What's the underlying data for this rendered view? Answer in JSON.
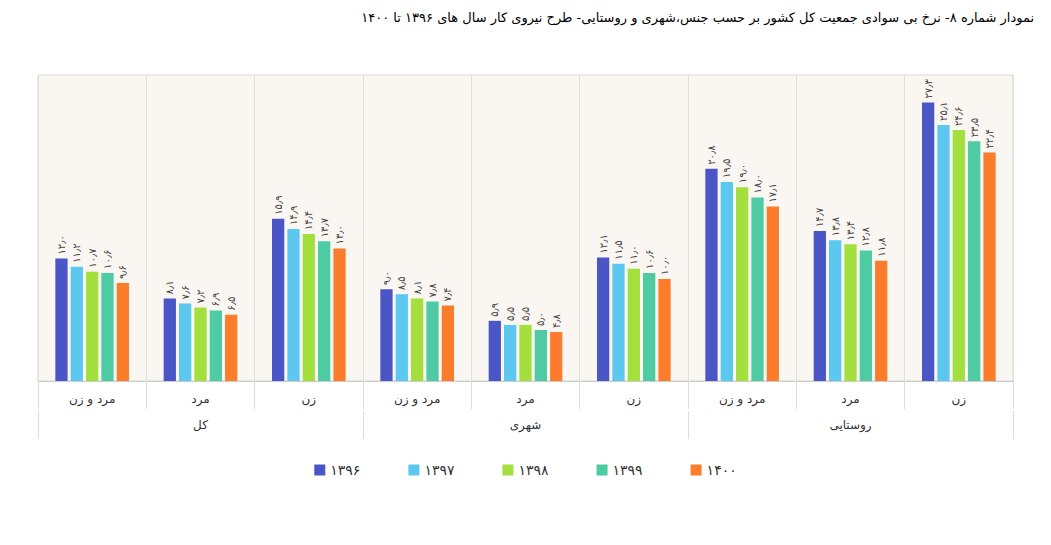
{
  "chart_data": {
    "type": "bar",
    "title": "نمودار شماره ۸- نرخ بی سوادی جمعیت کل کشور بر حسب جنس،شهری و روستایی- طرح نیروی کار سال های ۱۳۹۶ تا ۱۴۰۰",
    "categories": [
      "مرد و زن",
      "مرد",
      "زن",
      "مرد و زن",
      "مرد",
      "زن",
      "مرد و زن",
      "مرد",
      "زن"
    ],
    "groups": [
      "کل",
      "کل",
      "کل",
      "شهری",
      "شهری",
      "شهری",
      "روستایی",
      "روستایی",
      "روستایی"
    ],
    "series": [
      {
        "name": "۱۳۹۶",
        "color": "#4a56c6",
        "values": [
          12.0,
          8.1,
          15.9,
          9.0,
          5.9,
          12.1,
          20.8,
          14.7,
          27.3
        ],
        "value_labels": [
          "۱۲٫۰",
          "۸٫۱",
          "۱۵٫۹",
          "۹٫۰",
          "۵٫۹",
          "۱۲٫۱",
          "۲۰٫۸",
          "۱۴٫۷",
          "۲۷٫۳"
        ]
      },
      {
        "name": "۱۳۹۷",
        "color": "#5cc8f0",
        "values": [
          11.2,
          7.6,
          14.9,
          8.5,
          5.5,
          11.5,
          19.5,
          13.8,
          25.1
        ],
        "value_labels": [
          "۱۱٫۲",
          "۷٫۶",
          "۱۴٫۹",
          "۸٫۵",
          "۵٫۵",
          "۱۱٫۵",
          "۱۹٫۵",
          "۱۳٫۸",
          "۲۵٫۱"
        ]
      },
      {
        "name": "۱۳۹۸",
        "color": "#a3e03e",
        "values": [
          10.7,
          7.2,
          14.4,
          8.1,
          5.5,
          11.0,
          19.0,
          13.4,
          24.6
        ],
        "value_labels": [
          "۱۰٫۷",
          "۷٫۲",
          "۱۴٫۴",
          "۸٫۱",
          "۵٫۵",
          "۱۱٫۰",
          "۱۹٫۰",
          "۱۳٫۴",
          "۲۴٫۶"
        ]
      },
      {
        "name": "۱۳۹۹",
        "color": "#4ecba3",
        "values": [
          10.6,
          6.9,
          13.7,
          7.8,
          5.0,
          10.6,
          18.0,
          12.8,
          23.5
        ],
        "value_labels": [
          "۱۰٫۶",
          "۶٫۹",
          "۱۳٫۷",
          "۷٫۸",
          "۵٫۰",
          "۱۰٫۶",
          "۱۸٫۰",
          "۱۲٫۸",
          "۲۳٫۵"
        ]
      },
      {
        "name": "۱۴۰۰",
        "color": "#fb7d2c",
        "values": [
          9.6,
          6.5,
          13.0,
          7.4,
          4.8,
          10.0,
          17.1,
          11.8,
          22.4
        ],
        "value_labels": [
          "۹٫۶",
          "۶٫۵",
          "۱۳٫۰",
          "۷٫۴",
          "۴٫۸",
          "۱۰٫۰",
          "۱۷٫۱",
          "۱۱٫۸",
          "۲۲٫۴"
        ]
      }
    ],
    "ylim": [
      0,
      30
    ],
    "yticks": [
      0,
      30
    ],
    "grid": false,
    "legend": "bottom",
    "data_labels": true,
    "tick_labels": "x"
  }
}
